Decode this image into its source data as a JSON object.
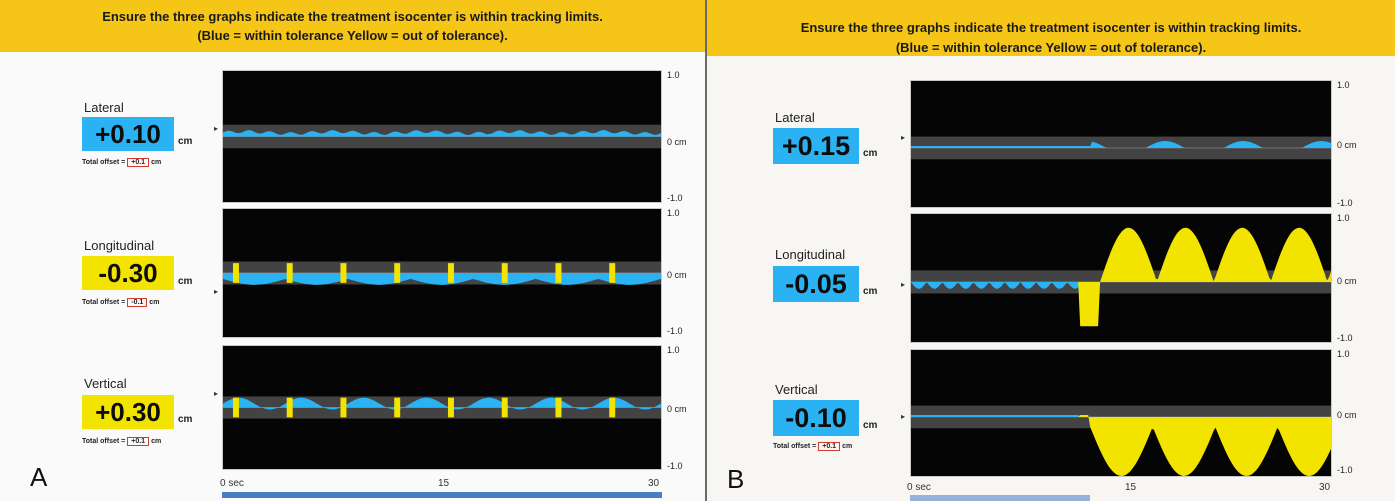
{
  "banner": {
    "line1": "Ensure the three graphs indicate the treatment isocenter is within tracking limits.",
    "line2": "(Blue = within tolerance  Yellow = out of tolerance)."
  },
  "panels": [
    {
      "letter": "A",
      "axes": {
        "top": "1.0",
        "mid": "0 cm",
        "bottom": "-1.0"
      },
      "x_axis": {
        "start": "0 sec",
        "mid": "15",
        "end": "30"
      },
      "rows": [
        {
          "title": "Lateral",
          "value": "+0.10",
          "unit": "cm",
          "status": "blue",
          "offset_label": "Total offset =",
          "offset_value": "+0.1",
          "offset_unit": "cm"
        },
        {
          "title": "Longitudinal",
          "value": "-0.30",
          "unit": "cm",
          "status": "yellow",
          "offset_label": "Total offset =",
          "offset_value": "-0.1",
          "offset_unit": "cm"
        },
        {
          "title": "Vertical",
          "value": "+0.30",
          "unit": "cm",
          "status": "yellow",
          "offset_label": "Total offset =",
          "offset_value": "+0.1",
          "offset_unit": "cm"
        }
      ]
    },
    {
      "letter": "B",
      "axes": {
        "top": "1.0",
        "mid": "0 cm",
        "bottom": "-1.0"
      },
      "x_axis": {
        "start": "0 sec",
        "mid": "15",
        "end": "30"
      },
      "rows": [
        {
          "title": "Lateral",
          "value": "+0.15",
          "unit": "cm",
          "status": "blue",
          "offset_label": "",
          "offset_value": "",
          "offset_unit": ""
        },
        {
          "title": "Longitudinal",
          "value": "-0.05",
          "unit": "cm",
          "status": "blue",
          "offset_label": "",
          "offset_value": "",
          "offset_unit": ""
        },
        {
          "title": "Vertical",
          "value": "-0.10",
          "unit": "cm",
          "status": "blue",
          "offset_label": "Total offset =",
          "offset_value": "+0.1",
          "offset_unit": "cm"
        }
      ]
    }
  ],
  "colors": {
    "within_tolerance": "#2ab2f2",
    "out_of_tolerance": "#f3e400",
    "plot_background": "#050505",
    "banner": "#f5c518"
  }
}
